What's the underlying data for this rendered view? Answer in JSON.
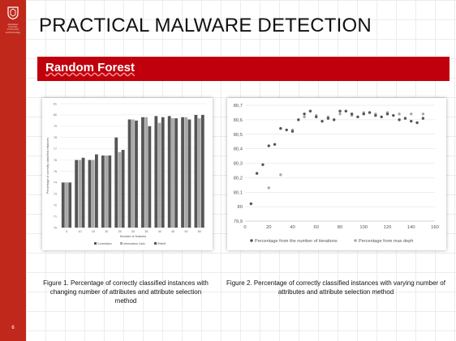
{
  "sidebar": {
    "institution": [
      "Mendeleev",
      "University",
      "of Chemistry",
      "and Technology"
    ],
    "page_number": "6"
  },
  "slide": {
    "title": "PRACTICAL MALWARE DETECTION",
    "subtitle": "Random Forest",
    "figure1_caption": "Figure 1.  Percentage of correctly classified instances with changing number of attributes and attribute selection method",
    "figure2_caption": "Figure 2.  Percentage of correctly classified instances with varying number of attributes and attribute selection method"
  },
  "colors": {
    "sidebar": "#c0281c",
    "banner": "#c0000c",
    "series_dark": "#555555",
    "series_light": "#a9a9a9"
  },
  "chart_data": [
    {
      "type": "bar",
      "title": "",
      "xlabel": "Number of features",
      "ylabel": "Percentage of correctly classified instances",
      "ylim": [
        70,
        81
      ],
      "yticks": [
        70,
        71,
        72,
        73,
        74,
        75,
        76,
        77,
        78,
        79,
        80,
        81
      ],
      "categories": [
        "5",
        "10",
        "15",
        "20",
        "25",
        "30",
        "35",
        "40",
        "45",
        "50",
        "60"
      ],
      "series": [
        {
          "name": "Correlation",
          "values": [
            74.0,
            76.0,
            76.0,
            76.4,
            78.0,
            79.6,
            79.8,
            79.9,
            79.9,
            79.8,
            80.0
          ]
        },
        {
          "name": "Information Gain",
          "values": [
            74.0,
            76.0,
            76.0,
            76.4,
            76.7,
            79.6,
            79.8,
            79.3,
            79.7,
            79.8,
            79.7
          ]
        },
        {
          "name": "Relieff",
          "values": [
            74.0,
            76.2,
            76.5,
            76.4,
            76.9,
            79.5,
            79.0,
            79.8,
            79.7,
            79.6,
            80.0
          ]
        }
      ],
      "legend": "bottom"
    },
    {
      "type": "scatter",
      "title": "",
      "xlim": [
        0,
        160
      ],
      "ylim": [
        79.9,
        80.7
      ],
      "xticks": [
        0,
        20,
        40,
        60,
        80,
        100,
        120,
        140,
        160
      ],
      "yticks": [
        "79,9",
        "80",
        "80,1",
        "80,2",
        "80,3",
        "80,4",
        "80,5",
        "80,6",
        "80,7"
      ],
      "series": [
        {
          "name": "Percentage from the number of iterations",
          "x": [
            5,
            10,
            15,
            20,
            25,
            30,
            35,
            40,
            45,
            50,
            55,
            60,
            65,
            70,
            75,
            80,
            85,
            90,
            95,
            100,
            105,
            110,
            115,
            120,
            125,
            130,
            135,
            140,
            145,
            150
          ],
          "y": [
            80.02,
            80.23,
            80.29,
            80.42,
            80.43,
            80.54,
            80.53,
            80.52,
            80.6,
            80.64,
            80.66,
            80.62,
            80.59,
            80.61,
            80.6,
            80.66,
            80.66,
            80.64,
            80.62,
            80.64,
            80.65,
            80.63,
            80.62,
            80.64,
            80.63,
            80.6,
            80.61,
            80.59,
            80.58,
            80.61
          ]
        },
        {
          "name": "Percentage from max deph",
          "x": [
            10,
            20,
            30,
            40,
            50,
            60,
            70,
            80,
            90,
            100,
            110,
            120,
            130,
            140,
            150
          ],
          "y": [
            80.23,
            80.13,
            80.22,
            80.53,
            80.62,
            80.63,
            80.62,
            80.64,
            80.63,
            80.65,
            80.64,
            80.65,
            80.64,
            80.64,
            80.64
          ]
        }
      ],
      "legend": "bottom"
    }
  ]
}
